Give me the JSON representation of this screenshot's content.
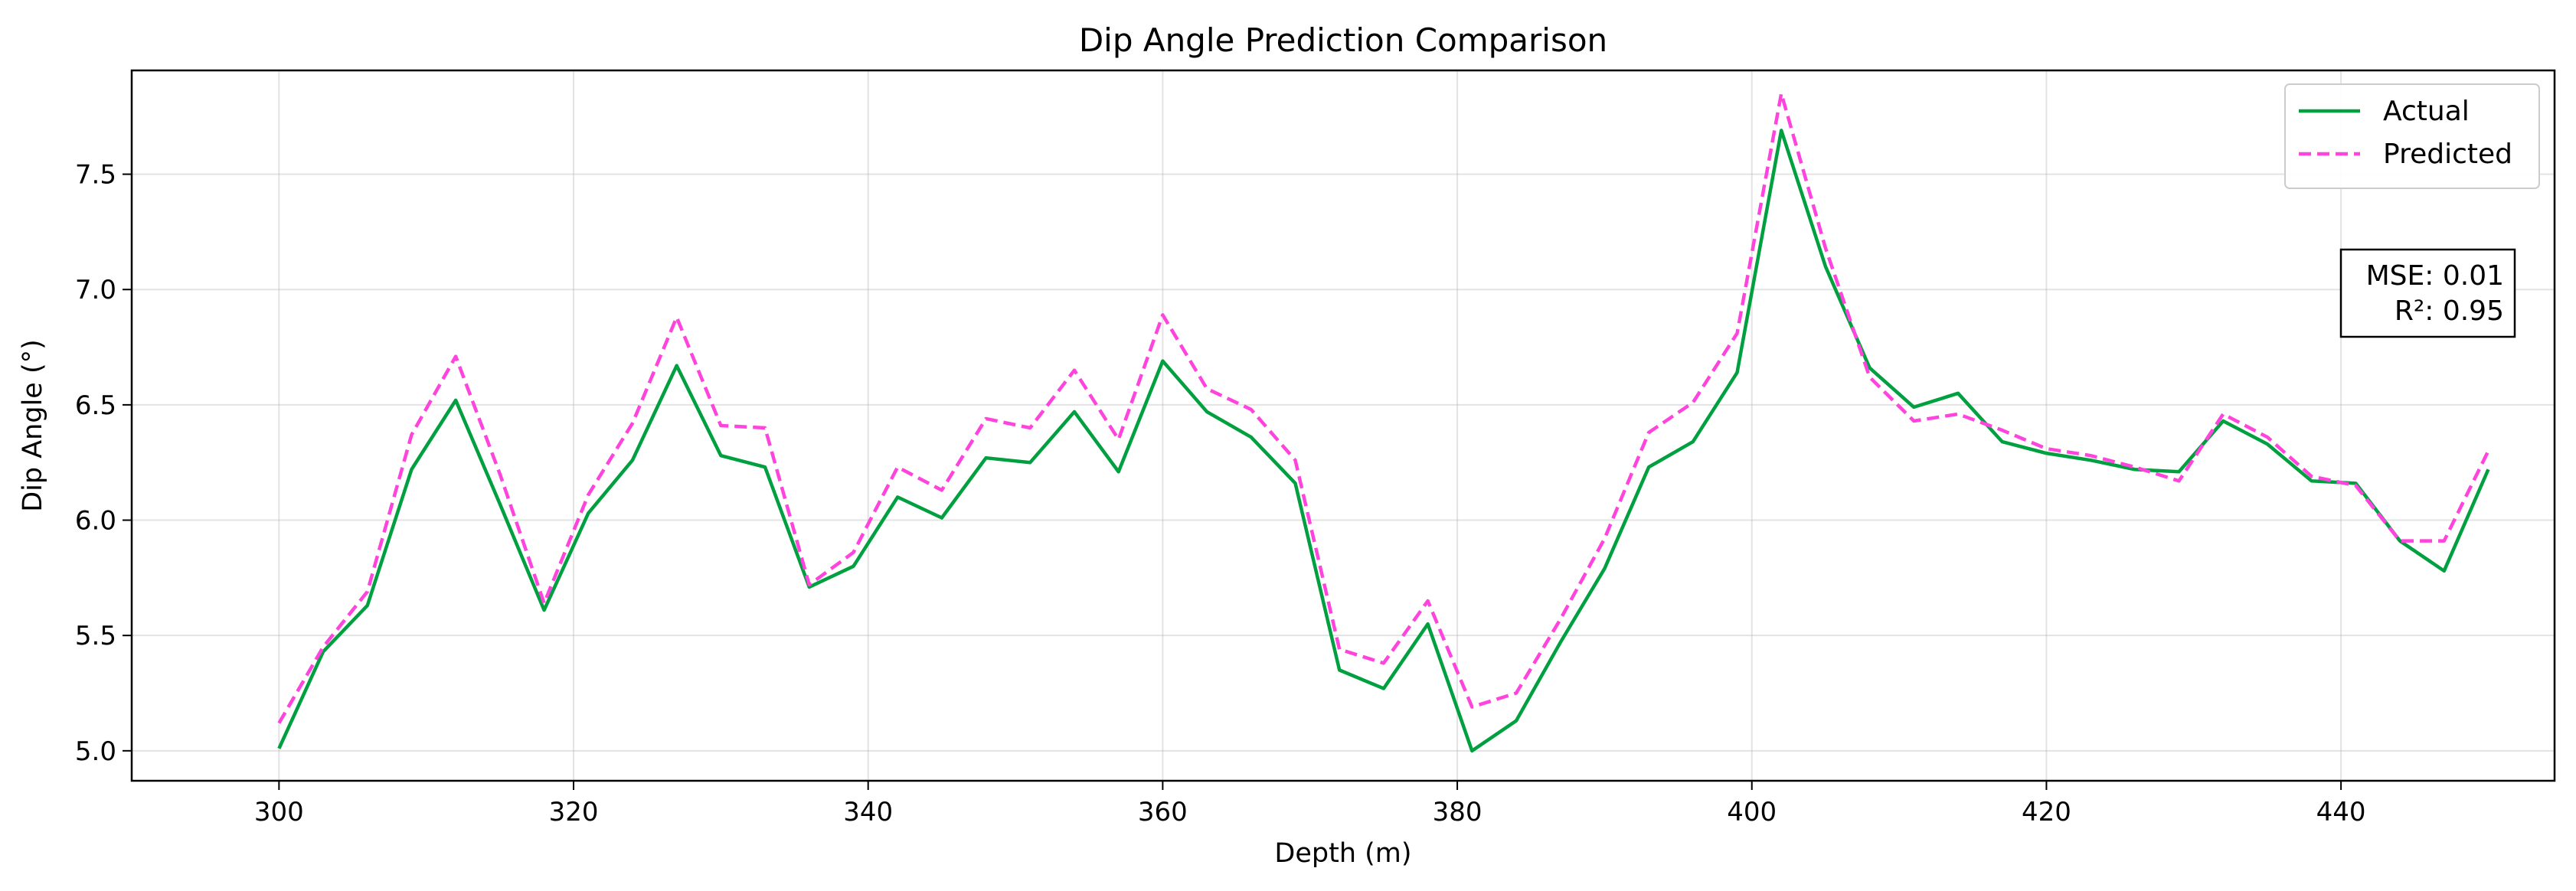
{
  "chart_data": {
    "type": "line",
    "title": "Dip Angle Prediction Comparison",
    "xlabel": "Depth (m)",
    "ylabel": "Dip Angle (°)",
    "xlim": [
      290,
      454.5
    ],
    "ylim": [
      4.87,
      7.95
    ],
    "xticks": [
      300,
      320,
      340,
      360,
      380,
      400,
      420,
      440
    ],
    "yticks": [
      5.0,
      5.5,
      6.0,
      6.5,
      7.0,
      7.5
    ],
    "xtick_labels": [
      "300",
      "320",
      "340",
      "360",
      "380",
      "400",
      "420",
      "440"
    ],
    "ytick_labels": [
      "5.0",
      "5.5",
      "6.0",
      "6.5",
      "7.0",
      "7.5"
    ],
    "grid": true,
    "legend_position": "top-right",
    "x": [
      300,
      303,
      306,
      309,
      312,
      315,
      318,
      321,
      324,
      327,
      330,
      333,
      336,
      339,
      342,
      345,
      348,
      351,
      354,
      357,
      360,
      363,
      366,
      369,
      372,
      375,
      378,
      381,
      384,
      387,
      390,
      393,
      396,
      399,
      402,
      405,
      408,
      411,
      414,
      417,
      420,
      423,
      426,
      429,
      432,
      435,
      438,
      441,
      444,
      447,
      450
    ],
    "series": [
      {
        "name": "Actual",
        "color": "#00a040",
        "style": "solid",
        "values": [
          5.01,
          5.43,
          5.63,
          6.22,
          6.52,
          6.07,
          5.61,
          6.03,
          6.26,
          6.67,
          6.28,
          6.23,
          5.71,
          5.8,
          6.1,
          6.01,
          6.27,
          6.25,
          6.47,
          6.21,
          6.69,
          6.47,
          6.36,
          6.16,
          5.35,
          5.27,
          5.55,
          5.0,
          5.13,
          5.47,
          5.79,
          6.23,
          6.34,
          6.64,
          7.69,
          7.1,
          6.66,
          6.49,
          6.55,
          6.34,
          6.29,
          6.26,
          6.22,
          6.21,
          6.43,
          6.33,
          6.17,
          6.16,
          5.91,
          5.78,
          6.22
        ]
      },
      {
        "name": "Predicted",
        "color": "#ff44dd",
        "style": "dashed",
        "values": [
          5.12,
          5.45,
          5.69,
          6.37,
          6.71,
          6.2,
          5.64,
          6.11,
          6.42,
          6.88,
          6.41,
          6.4,
          5.72,
          5.86,
          6.23,
          6.13,
          6.44,
          6.4,
          6.65,
          6.35,
          6.89,
          6.57,
          6.48,
          6.26,
          5.44,
          5.38,
          5.65,
          5.19,
          5.25,
          5.57,
          5.92,
          6.38,
          6.51,
          6.81,
          7.85,
          7.18,
          6.62,
          6.43,
          6.46,
          6.39,
          6.31,
          6.28,
          6.23,
          6.17,
          6.46,
          6.36,
          6.19,
          6.15,
          5.91,
          5.91,
          6.3
        ]
      }
    ],
    "annotation": {
      "line1": "MSE: 0.01",
      "line2": "R²: 0.95"
    }
  }
}
